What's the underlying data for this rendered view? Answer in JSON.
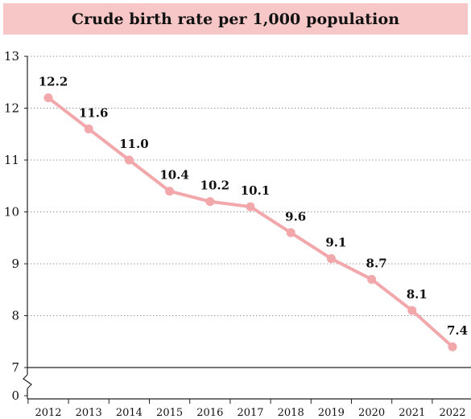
{
  "chart_data": {
    "type": "line",
    "title": "Crude birth rate per 1,000 population",
    "xlabel": "",
    "ylabel": "",
    "x": [
      "2012",
      "2013",
      "2014",
      "2015",
      "2016",
      "2017",
      "2018",
      "2019",
      "2020",
      "2021",
      "2022"
    ],
    "series": [
      {
        "values": [
          12.2,
          11.6,
          11.0,
          10.4,
          10.2,
          10.1,
          9.6,
          9.1,
          8.7,
          8.1,
          7.4
        ]
      }
    ],
    "data_labels": [
      "12.2",
      "11.6",
      "11.0",
      "10.4",
      "10.2",
      "10.1",
      "9.6",
      "9.1",
      "8.7",
      "8.1",
      "7.4"
    ],
    "y_tick_labels": [
      "13",
      "12",
      "11",
      "10",
      "9",
      "8",
      "7",
      "0"
    ],
    "ylim": [
      7,
      13
    ],
    "y_axis_break": "between 0 and 7",
    "grid": "horizontal dotted",
    "line_color": "#f2a7aa",
    "title_background": "#f7c6c7"
  }
}
